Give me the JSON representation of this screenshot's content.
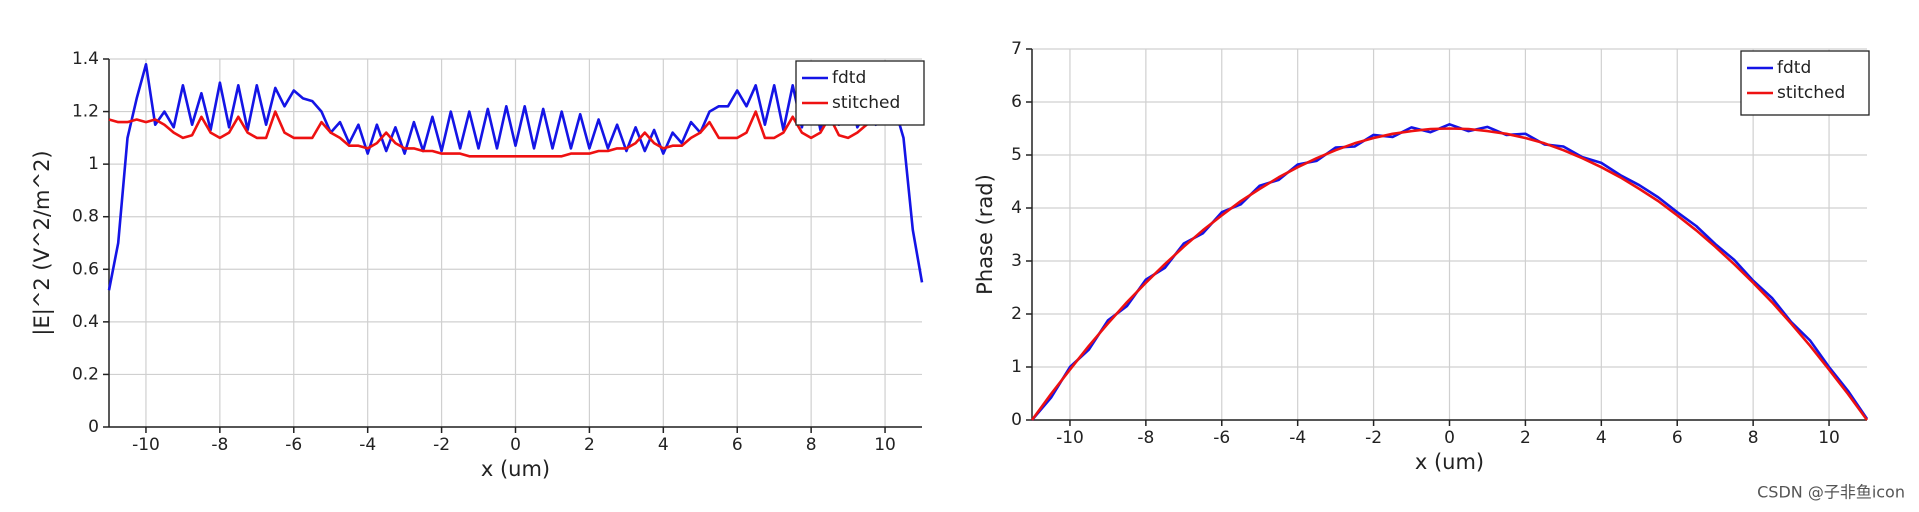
{
  "chart_data": [
    {
      "type": "line",
      "xlabel": "x (um)",
      "ylabel": "|E|^2 (V^2/m^2)",
      "xlim": [
        -11,
        11
      ],
      "xticks": [
        -10,
        -8,
        -6,
        -4,
        -2,
        0,
        2,
        4,
        6,
        8,
        10
      ],
      "ylim": [
        0,
        1.4
      ],
      "yticks": [
        0,
        0.2,
        0.4,
        0.6,
        0.8,
        1,
        1.2,
        1.4
      ],
      "grid": true,
      "legend": "upper right",
      "x": [
        -11,
        -10.75,
        -10.5,
        -10.25,
        -10,
        -9.75,
        -9.5,
        -9.25,
        -9,
        -8.75,
        -8.5,
        -8.25,
        -8,
        -7.75,
        -7.5,
        -7.25,
        -7,
        -6.75,
        -6.5,
        -6.25,
        -6,
        -5.75,
        -5.5,
        -5.25,
        -5,
        -4.75,
        -4.5,
        -4.25,
        -4,
        -3.75,
        -3.5,
        -3.25,
        -3,
        -2.75,
        -2.5,
        -2.25,
        -2,
        -1.75,
        -1.5,
        -1.25,
        -1,
        -0.75,
        -0.5,
        -0.25,
        0,
        0.25,
        0.5,
        0.75,
        1,
        1.25,
        1.5,
        1.75,
        2,
        2.25,
        2.5,
        2.75,
        3,
        3.25,
        3.5,
        3.75,
        4,
        4.25,
        4.5,
        4.75,
        5,
        5.25,
        5.5,
        5.75,
        6,
        6.25,
        6.5,
        6.75,
        7,
        7.25,
        7.5,
        7.75,
        8,
        8.25,
        8.5,
        8.75,
        9,
        9.25,
        9.5,
        9.75,
        10,
        10.25,
        10.5,
        10.75,
        11
      ],
      "series": [
        {
          "name": "fdtd",
          "color": "#1414e6",
          "values": [
            0.52,
            0.7,
            1.1,
            1.25,
            1.38,
            1.15,
            1.2,
            1.14,
            1.3,
            1.15,
            1.27,
            1.13,
            1.31,
            1.14,
            1.3,
            1.13,
            1.3,
            1.15,
            1.29,
            1.22,
            1.28,
            1.25,
            1.24,
            1.2,
            1.12,
            1.16,
            1.08,
            1.15,
            1.04,
            1.15,
            1.05,
            1.14,
            1.04,
            1.16,
            1.05,
            1.18,
            1.05,
            1.2,
            1.06,
            1.2,
            1.06,
            1.21,
            1.06,
            1.22,
            1.07,
            1.22,
            1.06,
            1.21,
            1.06,
            1.2,
            1.06,
            1.19,
            1.06,
            1.17,
            1.06,
            1.15,
            1.05,
            1.14,
            1.05,
            1.13,
            1.04,
            1.12,
            1.08,
            1.16,
            1.12,
            1.2,
            1.22,
            1.22,
            1.28,
            1.22,
            1.3,
            1.15,
            1.3,
            1.13,
            1.3,
            1.14,
            1.31,
            1.13,
            1.27,
            1.15,
            1.3,
            1.14,
            1.2,
            1.15,
            1.2,
            1.22,
            1.1,
            0.75,
            0.55
          ]
        },
        {
          "name": "stitched",
          "color": "#ee1111",
          "values": [
            1.17,
            1.16,
            1.16,
            1.17,
            1.16,
            1.17,
            1.15,
            1.12,
            1.1,
            1.11,
            1.18,
            1.12,
            1.1,
            1.12,
            1.18,
            1.12,
            1.1,
            1.1,
            1.2,
            1.12,
            1.1,
            1.1,
            1.1,
            1.16,
            1.12,
            1.1,
            1.07,
            1.07,
            1.06,
            1.08,
            1.12,
            1.08,
            1.06,
            1.06,
            1.05,
            1.05,
            1.04,
            1.04,
            1.04,
            1.03,
            1.03,
            1.03,
            1.03,
            1.03,
            1.03,
            1.03,
            1.03,
            1.03,
            1.03,
            1.03,
            1.04,
            1.04,
            1.04,
            1.05,
            1.05,
            1.06,
            1.06,
            1.08,
            1.12,
            1.08,
            1.06,
            1.07,
            1.07,
            1.1,
            1.12,
            1.16,
            1.1,
            1.1,
            1.1,
            1.12,
            1.2,
            1.1,
            1.1,
            1.12,
            1.18,
            1.12,
            1.1,
            1.12,
            1.18,
            1.11,
            1.1,
            1.12,
            1.15,
            1.17,
            1.16,
            1.17,
            1.16,
            1.16,
            1.17
          ]
        }
      ]
    },
    {
      "type": "line",
      "xlabel": "x (um)",
      "ylabel": "Phase (rad)",
      "xlim": [
        -11,
        11
      ],
      "xticks": [
        -10,
        -8,
        -6,
        -4,
        -2,
        0,
        2,
        4,
        6,
        8,
        10
      ],
      "ylim": [
        0,
        7
      ],
      "yticks": [
        0,
        1,
        2,
        3,
        4,
        5,
        6,
        7
      ],
      "grid": true,
      "legend": "upper right",
      "x": [
        -11,
        -10.5,
        -10,
        -9.5,
        -9,
        -8.5,
        -8,
        -7.5,
        -7,
        -6.5,
        -6,
        -5.5,
        -5,
        -4.5,
        -4,
        -3.5,
        -3,
        -2.5,
        -2,
        -1.5,
        -1,
        -0.5,
        0,
        0.5,
        1,
        1.5,
        2,
        2.5,
        3,
        3.5,
        4,
        4.5,
        5,
        5.5,
        6,
        6.5,
        7,
        7.5,
        8,
        8.5,
        9,
        9.5,
        10,
        10.5,
        11
      ],
      "series": [
        {
          "name": "fdtd",
          "color": "#1414e6",
          "values": [
            0,
            0.42,
            1.0,
            1.33,
            1.88,
            2.15,
            2.65,
            2.87,
            3.33,
            3.52,
            3.92,
            4.07,
            4.42,
            4.53,
            4.82,
            4.89,
            5.14,
            5.16,
            5.38,
            5.34,
            5.52,
            5.43,
            5.58,
            5.45,
            5.53,
            5.38,
            5.4,
            5.2,
            5.16,
            4.96,
            4.85,
            4.62,
            4.43,
            4.2,
            3.92,
            3.66,
            3.32,
            3.02,
            2.63,
            2.3,
            1.85,
            1.5,
            1.0,
            0.55,
            0.02
          ]
        },
        {
          "name": "stitched",
          "color": "#ee1111",
          "values": [
            0,
            0.49,
            0.95,
            1.4,
            1.82,
            2.22,
            2.59,
            2.94,
            3.27,
            3.58,
            3.86,
            4.13,
            4.36,
            4.58,
            4.77,
            4.94,
            5.09,
            5.22,
            5.32,
            5.4,
            5.45,
            5.49,
            5.5,
            5.49,
            5.45,
            5.4,
            5.32,
            5.22,
            5.09,
            4.94,
            4.77,
            4.58,
            4.36,
            4.13,
            3.86,
            3.58,
            3.27,
            2.94,
            2.59,
            2.22,
            1.82,
            1.4,
            0.95,
            0.49,
            0
          ]
        }
      ]
    }
  ],
  "watermark": "CSDN @子非鱼icon"
}
